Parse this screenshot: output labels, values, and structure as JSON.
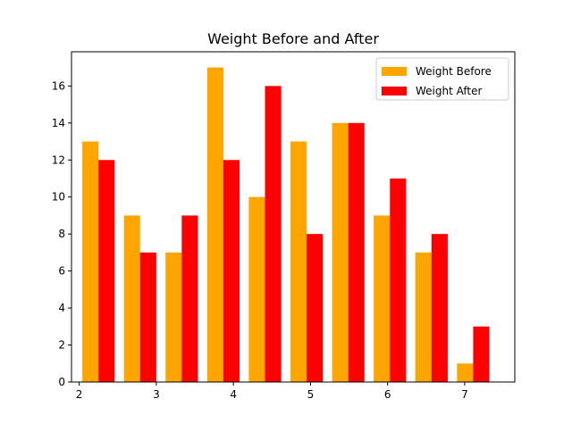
{
  "chart_data": {
    "type": "bar",
    "title": "Weight Before and After",
    "xlabel": "",
    "ylabel": "",
    "x": [
      2.25,
      2.79,
      3.33,
      3.87,
      4.41,
      4.95,
      5.49,
      6.03,
      6.57,
      7.11
    ],
    "series": [
      {
        "name": "Weight Before",
        "color": "#ffa500",
        "values": [
          13,
          9,
          7,
          17,
          10,
          13,
          14,
          9,
          7,
          1
        ]
      },
      {
        "name": "Weight After",
        "color": "#ff0000",
        "values": [
          12,
          7,
          9,
          12,
          16,
          8,
          14,
          11,
          8,
          3
        ]
      }
    ],
    "bar_width": 0.21,
    "xlim": [
      1.9,
      7.65
    ],
    "ylim": [
      0,
      17.85
    ],
    "xticks": [
      2,
      3,
      4,
      5,
      6,
      7
    ],
    "xtick_labels": [
      "2",
      "3",
      "4",
      "5",
      "6",
      "7"
    ],
    "yticks": [
      0,
      2,
      4,
      6,
      8,
      10,
      12,
      14,
      16
    ],
    "ytick_labels": [
      "0",
      "2",
      "4",
      "6",
      "8",
      "10",
      "12",
      "14",
      "16"
    ],
    "grid": false,
    "legend": "top-right"
  }
}
